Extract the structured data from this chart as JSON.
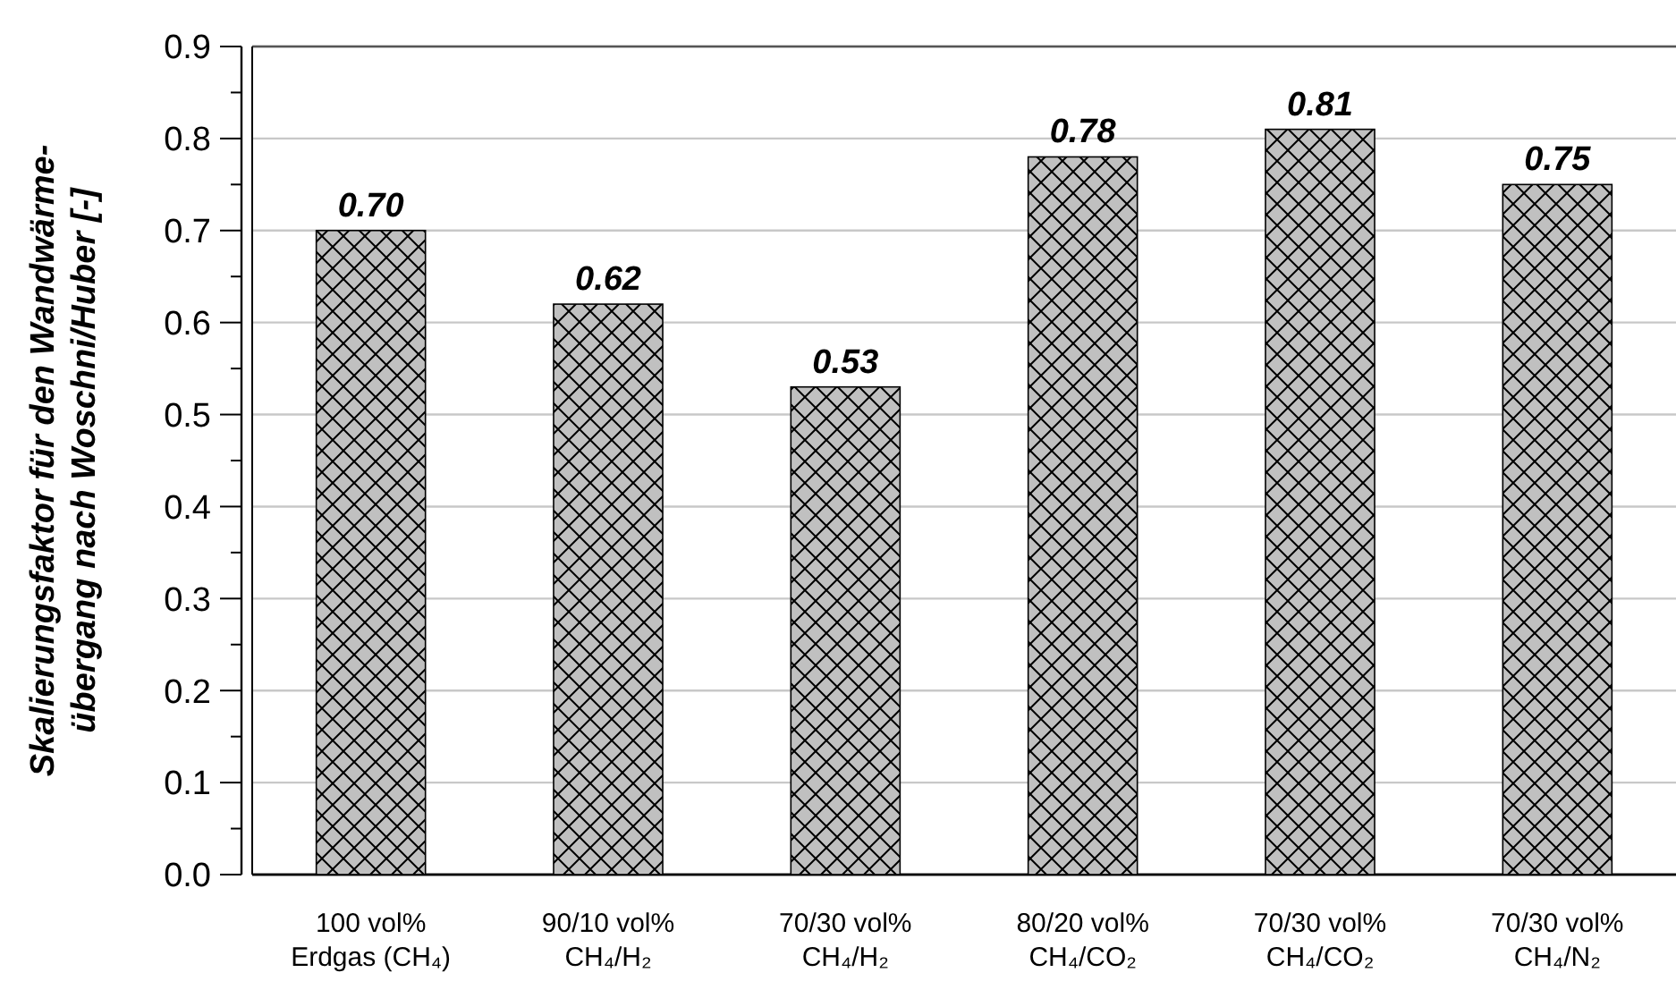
{
  "chart_data": {
    "type": "bar",
    "ylabel": "Skalierungsfaktor für den Wandwärme-\nübergang nach Woschni/Huber [-]",
    "categories": [
      "100 vol%\nErdgas (CH₄)",
      "90/10 vol%\nCH₄/H₂",
      "70/30 vol%\nCH₄/H₂",
      "80/20 vol%\nCH₄/CO₂",
      "70/30 vol%\nCH₄/CO₂",
      "70/30 vol%\nCH₄/N₂"
    ],
    "values": [
      0.7,
      0.62,
      0.53,
      0.78,
      0.81,
      0.75
    ],
    "value_labels": [
      "0.70",
      "0.62",
      "0.53",
      "0.78",
      "0.81",
      "0.75"
    ],
    "color": "#c0c0c0",
    "ylim": [
      0,
      0.9
    ],
    "yticks": [
      "0.0",
      "0.1",
      "0.2",
      "0.3",
      "0.4",
      "0.5",
      "0.6",
      "0.7",
      "0.8",
      "0.9"
    ],
    "grid": "y"
  }
}
